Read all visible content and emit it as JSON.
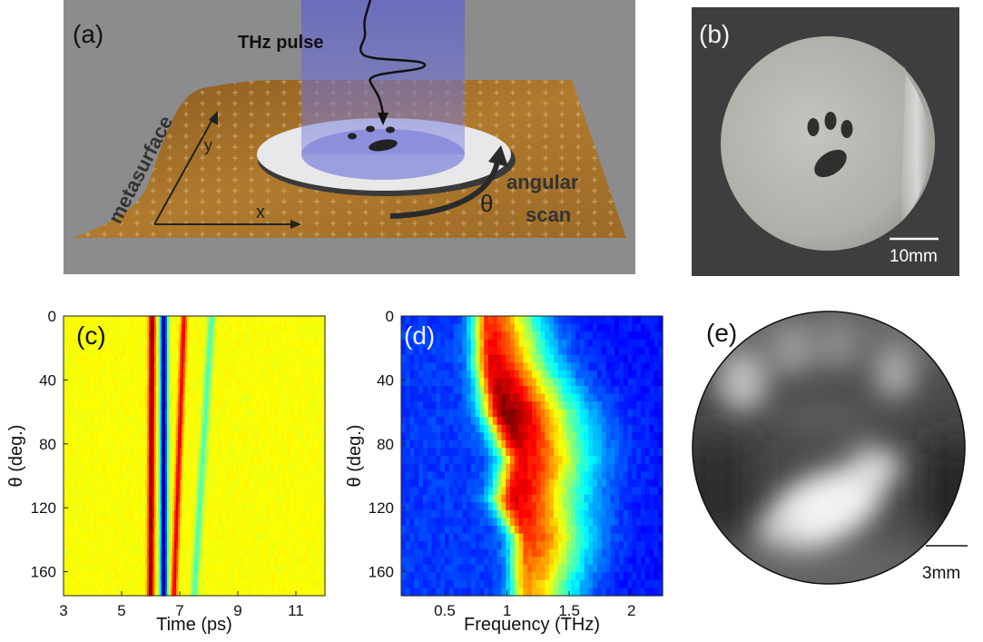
{
  "panels": {
    "a": {
      "label": "(a)",
      "beam_label": "THz pulse",
      "surface_label": "metasurface",
      "axis_x": "x",
      "axis_y": "y",
      "theta": "θ",
      "scan_label_1": "angular",
      "scan_label_2": "scan",
      "colors": {
        "background": "#8c8c8e",
        "surface": "#b07a2e",
        "beam": "#5f62c8",
        "disc": "#e8e8ea"
      }
    },
    "b": {
      "label": "(b)",
      "scale_label": "10mm",
      "colors": {
        "background": "#3c3f3d",
        "disc": "#b9bab4"
      }
    },
    "c": {
      "label": "(c)",
      "xlabel": "Time (ps)",
      "ylabel": "θ (deg.)",
      "xticks": [
        "3",
        "5",
        "7",
        "9",
        "11"
      ],
      "yticks": [
        "0",
        "40",
        "80",
        "120",
        "160"
      ]
    },
    "d": {
      "label": "(d)",
      "xlabel": "Frequency (THz)",
      "ylabel": "θ (deg.)",
      "xticks": [
        "0.5",
        "1",
        "1.5",
        "2"
      ],
      "yticks": [
        "0",
        "40",
        "80",
        "120",
        "160"
      ]
    },
    "e": {
      "label": "(e)",
      "scale_label": "3mm"
    }
  },
  "chart_data": [
    {
      "type": "heatmap",
      "panel": "c",
      "xlabel": "Time (ps)",
      "ylabel": "θ (deg.)",
      "xlim": [
        3,
        12
      ],
      "ylim": [
        175,
        0
      ],
      "colormap": "jet",
      "background_level": 0.62,
      "traces": [
        {
          "t_at_0deg": 6.05,
          "t_at_175deg": 6.0,
          "width_ps": 0.22,
          "level": 1.0
        },
        {
          "t_at_0deg": 6.45,
          "t_at_175deg": 6.45,
          "width_ps": 0.25,
          "level": 0.0
        },
        {
          "t_at_0deg": 7.15,
          "t_at_175deg": 6.8,
          "width_ps": 0.2,
          "level": 0.9
        },
        {
          "t_at_0deg": 8.1,
          "t_at_175deg": 7.5,
          "width_ps": 0.25,
          "level": 0.45
        }
      ]
    },
    {
      "type": "heatmap",
      "panel": "d",
      "xlabel": "Frequency (THz)",
      "ylabel": "θ (deg.)",
      "xlim": [
        0.15,
        2.25
      ],
      "ylim": [
        175,
        0
      ],
      "colormap": "jet",
      "ridge": [
        {
          "theta": 0,
          "f": 0.85,
          "width": 0.12,
          "peak": 0.82
        },
        {
          "theta": 30,
          "f": 0.88,
          "width": 0.14,
          "peak": 0.9
        },
        {
          "theta": 60,
          "f": 0.98,
          "width": 0.17,
          "peak": 1.0
        },
        {
          "theta": 90,
          "f": 1.12,
          "width": 0.16,
          "peak": 0.88
        },
        {
          "theta": 115,
          "f": 1.05,
          "width": 0.16,
          "peak": 0.9
        },
        {
          "theta": 140,
          "f": 1.18,
          "width": 0.14,
          "peak": 0.82
        },
        {
          "theta": 175,
          "f": 1.15,
          "width": 0.12,
          "peak": 0.7
        }
      ]
    }
  ]
}
